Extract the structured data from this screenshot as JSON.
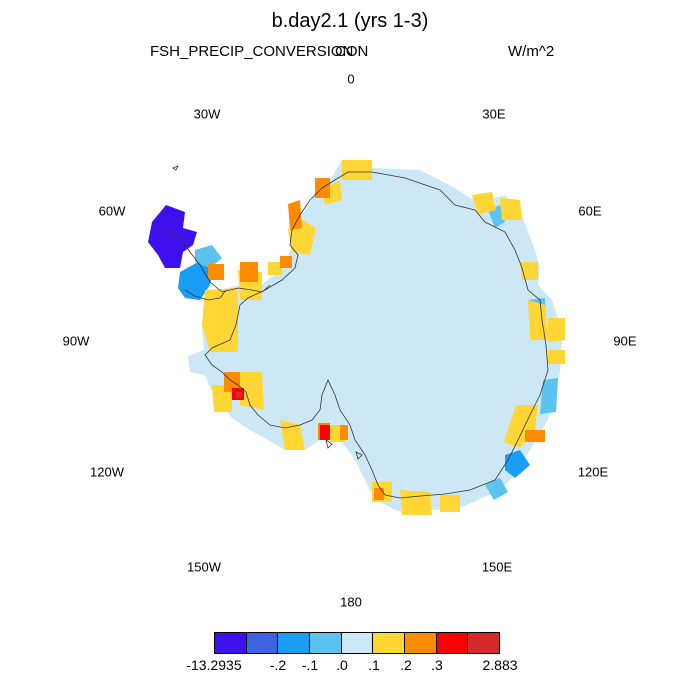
{
  "header": {
    "title": "b.day2.1 (yrs 1-3)",
    "variable": "FSH_PRECIP_CONVERSION",
    "region": "CON",
    "units": "W/m^2"
  },
  "map": {
    "projection": "south-polar-stereographic",
    "longitude_labels": {
      "0": "0",
      "30E": "30E",
      "60E": "60E",
      "90E": "90E",
      "120E": "120E",
      "150E": "150E",
      "180": "180",
      "150W": "150W",
      "120W": "120W",
      "90W": "90W",
      "60W": "60W",
      "30W": "30W"
    },
    "ice_sheet_class": ".0 to .1",
    "ice_sheet_color": "#cce8f6"
  },
  "colorbar": {
    "colors": [
      "#3f10ee",
      "#3d63e0",
      "#1a9ef5",
      "#5bc3ef",
      "#cce8f6",
      "#ffd633",
      "#ff8c00",
      "#ff0000",
      "#d42a2a"
    ],
    "labels": [
      "-13.2935",
      "-.2",
      "-.1",
      ".0",
      ".1",
      ".2",
      ".3",
      "",
      "2.883"
    ]
  }
}
